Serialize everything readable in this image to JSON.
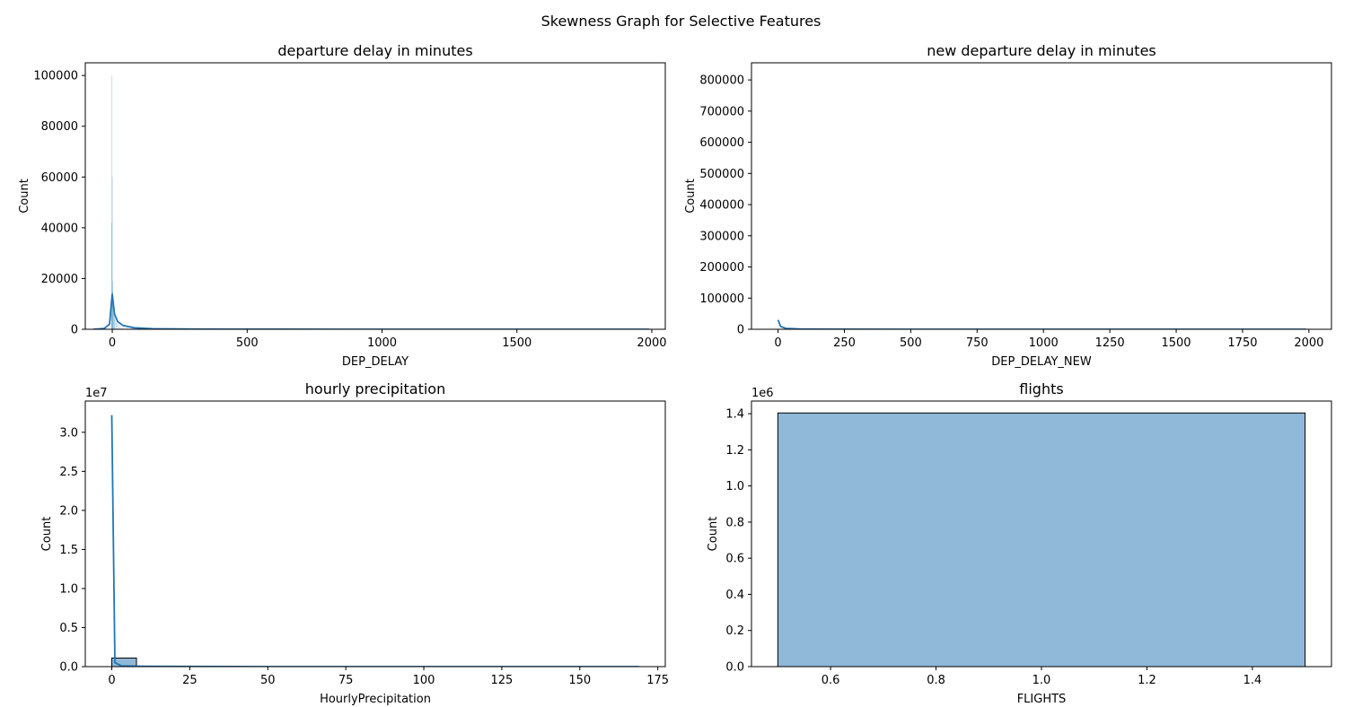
{
  "suptitle": "Skewness Graph for Selective Features",
  "chart_data": [
    {
      "type": "bar",
      "title": "departure delay in minutes",
      "xlabel": "DEP_DELAY",
      "ylabel": "Count",
      "offset_text": "",
      "xlim": [
        -100,
        2050
      ],
      "ylim": [
        0,
        105000
      ],
      "xticks": [
        0,
        500,
        1000,
        1500,
        2000
      ],
      "yticks": [
        0,
        20000,
        40000,
        60000,
        80000,
        100000
      ],
      "ytick_labels": [
        "0",
        "20000",
        "40000",
        "60000",
        "80000",
        "100000"
      ],
      "bars": [
        {
          "x": -3,
          "y": 6000
        },
        {
          "x": -2,
          "y": 42000
        },
        {
          "x": -1,
          "y": 100000
        },
        {
          "x": 0,
          "y": 60000
        },
        {
          "x": 1,
          "y": 19000
        },
        {
          "x": 2,
          "y": 15000
        },
        {
          "x": 4,
          "y": 11000
        },
        {
          "x": 6,
          "y": 7000
        },
        {
          "x": 8,
          "y": 5000
        },
        {
          "x": 10,
          "y": 4000
        },
        {
          "x": 14,
          "y": 3000
        },
        {
          "x": 18,
          "y": 2500
        },
        {
          "x": 24,
          "y": 2000
        },
        {
          "x": 30,
          "y": 1500
        },
        {
          "x": 40,
          "y": 1000
        },
        {
          "x": 55,
          "y": 600
        }
      ],
      "kde": [
        [
          -70,
          0
        ],
        [
          -30,
          300
        ],
        [
          -10,
          2000
        ],
        [
          0,
          14000
        ],
        [
          8,
          6000
        ],
        [
          20,
          3000
        ],
        [
          40,
          1500
        ],
        [
          80,
          600
        ],
        [
          150,
          200
        ],
        [
          300,
          60
        ],
        [
          600,
          20
        ],
        [
          1000,
          10
        ],
        [
          1500,
          5
        ],
        [
          1990,
          0
        ]
      ],
      "bar_color": "#1f77b4",
      "line_color": "#1f77b4"
    },
    {
      "type": "bar",
      "title": "new departure delay in minutes",
      "xlabel": "DEP_DELAY_NEW",
      "ylabel": "Count",
      "offset_text": "",
      "xlim": [
        -100,
        2085
      ],
      "ylim": [
        0,
        855000
      ],
      "xticks": [
        0,
        250,
        500,
        750,
        1000,
        1250,
        1500,
        1750,
        2000
      ],
      "yticks": [
        0,
        100000,
        200000,
        300000,
        400000,
        500000,
        600000,
        700000,
        800000
      ],
      "ytick_labels": [
        "0",
        "100000",
        "200000",
        "300000",
        "400000",
        "500000",
        "600000",
        "700000",
        "800000"
      ],
      "bars": [],
      "kde": [
        [
          0,
          30000
        ],
        [
          10,
          9000
        ],
        [
          30,
          3000
        ],
        [
          80,
          1200
        ],
        [
          200,
          400
        ],
        [
          500,
          100
        ],
        [
          1000,
          40
        ],
        [
          1500,
          20
        ],
        [
          1990,
          0
        ]
      ],
      "bar_color": "#1f77b4",
      "line_color": "#1f77b4"
    },
    {
      "type": "bar",
      "title": "hourly precipitation",
      "xlabel": "HourlyPrecipitation",
      "ylabel": "Count",
      "offset_text": "1e7",
      "xlim": [
        -8.5,
        177.4
      ],
      "ylim": [
        0,
        3.4
      ],
      "xticks": [
        0,
        25,
        50,
        75,
        100,
        125,
        150,
        175
      ],
      "yticks": [
        0,
        0.5,
        1.0,
        1.5,
        2.0,
        2.5,
        3.0
      ],
      "ytick_labels": [
        "0.0",
        "0.5",
        "1.0",
        "1.5",
        "2.0",
        "2.5",
        "3.0"
      ],
      "bars": [
        {
          "x0": 0,
          "x1": 7.9,
          "y": 0.11
        }
      ],
      "kde": [
        [
          0,
          3.22
        ],
        [
          1,
          0.05
        ],
        [
          3,
          0.01
        ],
        [
          10,
          0.005
        ],
        [
          50,
          0
        ],
        [
          169,
          0
        ]
      ],
      "bar_color": "#8fb8d9",
      "line_color": "#1f77b4"
    },
    {
      "type": "bar",
      "title": "flights",
      "xlabel": "FLIGHTS",
      "ylabel": "Count",
      "offset_text": "1e6",
      "xlim": [
        0.45,
        1.55
      ],
      "ylim": [
        0,
        1.47
      ],
      "xticks": [
        0.6,
        0.8,
        1.0,
        1.2,
        1.4
      ],
      "yticks": [
        0,
        0.2,
        0.4,
        0.6,
        0.8,
        1.0,
        1.2,
        1.4
      ],
      "ytick_labels": [
        "0.0",
        "0.2",
        "0.4",
        "0.6",
        "0.8",
        "1.0",
        "1.2",
        "1.4"
      ],
      "xtick_labels": [
        "0.6",
        "0.8",
        "1.0",
        "1.2",
        "1.4"
      ],
      "bars": [
        {
          "x0": 0.5,
          "x1": 1.5,
          "y": 1.404
        }
      ],
      "kde": [],
      "bar_color": "#8fb8d9",
      "line_color": "#1f77b4"
    }
  ]
}
